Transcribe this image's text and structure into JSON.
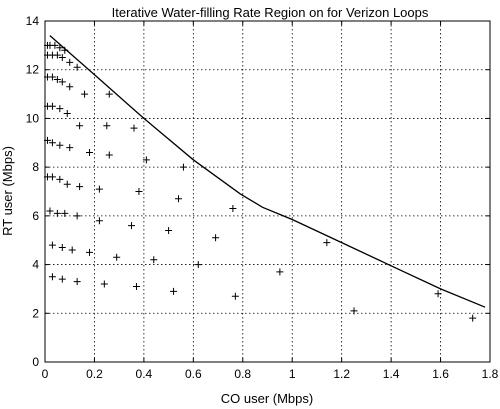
{
  "chart_data": {
    "type": "scatter",
    "title": "Iterative Water-filling Rate Region on for Verizon Loops",
    "xlabel": "CO user (Mbps)",
    "ylabel": "RT user (Mbps)",
    "xlim": [
      0,
      1.8
    ],
    "ylim": [
      0,
      14
    ],
    "x_ticks": [
      "0",
      "0.2",
      "0.4",
      "0.6",
      "0.8",
      "1",
      "1.2",
      "1.4",
      "1.6",
      "1.8"
    ],
    "y_ticks": [
      "0",
      "2",
      "4",
      "6",
      "8",
      "10",
      "12",
      "14"
    ],
    "grid": true,
    "series": [
      {
        "marker": "plus",
        "points": [
          [
            0.01,
            13.0
          ],
          [
            0.02,
            13.0
          ],
          [
            0.04,
            13.0
          ],
          [
            0.06,
            12.9
          ],
          [
            0.08,
            12.8
          ],
          [
            0.01,
            12.6
          ],
          [
            0.03,
            12.6
          ],
          [
            0.05,
            12.6
          ],
          [
            0.07,
            12.5
          ],
          [
            0.1,
            12.3
          ],
          [
            0.13,
            12.1
          ],
          [
            0.01,
            11.7
          ],
          [
            0.03,
            11.7
          ],
          [
            0.05,
            11.6
          ],
          [
            0.07,
            11.5
          ],
          [
            0.1,
            11.3
          ],
          [
            0.16,
            11.0
          ],
          [
            0.26,
            11.0
          ],
          [
            0.01,
            10.5
          ],
          [
            0.03,
            10.5
          ],
          [
            0.06,
            10.4
          ],
          [
            0.09,
            10.2
          ],
          [
            0.14,
            9.7
          ],
          [
            0.25,
            9.7
          ],
          [
            0.36,
            9.6
          ],
          [
            0.01,
            9.1
          ],
          [
            0.03,
            9.0
          ],
          [
            0.06,
            8.9
          ],
          [
            0.1,
            8.8
          ],
          [
            0.18,
            8.6
          ],
          [
            0.26,
            8.5
          ],
          [
            0.41,
            8.3
          ],
          [
            0.56,
            8.0
          ],
          [
            0.01,
            7.6
          ],
          [
            0.03,
            7.6
          ],
          [
            0.06,
            7.5
          ],
          [
            0.09,
            7.3
          ],
          [
            0.14,
            7.2
          ],
          [
            0.22,
            7.1
          ],
          [
            0.38,
            7.0
          ],
          [
            0.54,
            6.7
          ],
          [
            0.76,
            6.3
          ],
          [
            0.02,
            6.2
          ],
          [
            0.05,
            6.1
          ],
          [
            0.08,
            6.1
          ],
          [
            0.13,
            6.0
          ],
          [
            0.22,
            5.8
          ],
          [
            0.35,
            5.6
          ],
          [
            0.5,
            5.4
          ],
          [
            0.69,
            5.1
          ],
          [
            0.03,
            4.8
          ],
          [
            0.07,
            4.7
          ],
          [
            0.11,
            4.6
          ],
          [
            0.18,
            4.5
          ],
          [
            0.29,
            4.3
          ],
          [
            0.44,
            4.2
          ],
          [
            0.62,
            4.0
          ],
          [
            0.03,
            3.5
          ],
          [
            0.07,
            3.4
          ],
          [
            0.13,
            3.3
          ],
          [
            0.24,
            3.2
          ],
          [
            0.37,
            3.1
          ],
          [
            0.52,
            2.9
          ],
          [
            0.77,
            2.7
          ],
          [
            0.95,
            3.7
          ],
          [
            1.14,
            4.9
          ],
          [
            1.25,
            2.1
          ],
          [
            1.59,
            2.8
          ],
          [
            1.73,
            1.8
          ]
        ]
      },
      {
        "line": "solid",
        "points": [
          [
            0.02,
            13.4
          ],
          [
            0.2,
            11.8
          ],
          [
            0.4,
            10.0
          ],
          [
            0.6,
            8.3
          ],
          [
            0.79,
            6.9
          ],
          [
            0.88,
            6.35
          ],
          [
            1.0,
            5.85
          ],
          [
            1.2,
            4.9
          ],
          [
            1.4,
            3.95
          ],
          [
            1.6,
            3.0
          ],
          [
            1.78,
            2.25
          ]
        ]
      }
    ]
  }
}
